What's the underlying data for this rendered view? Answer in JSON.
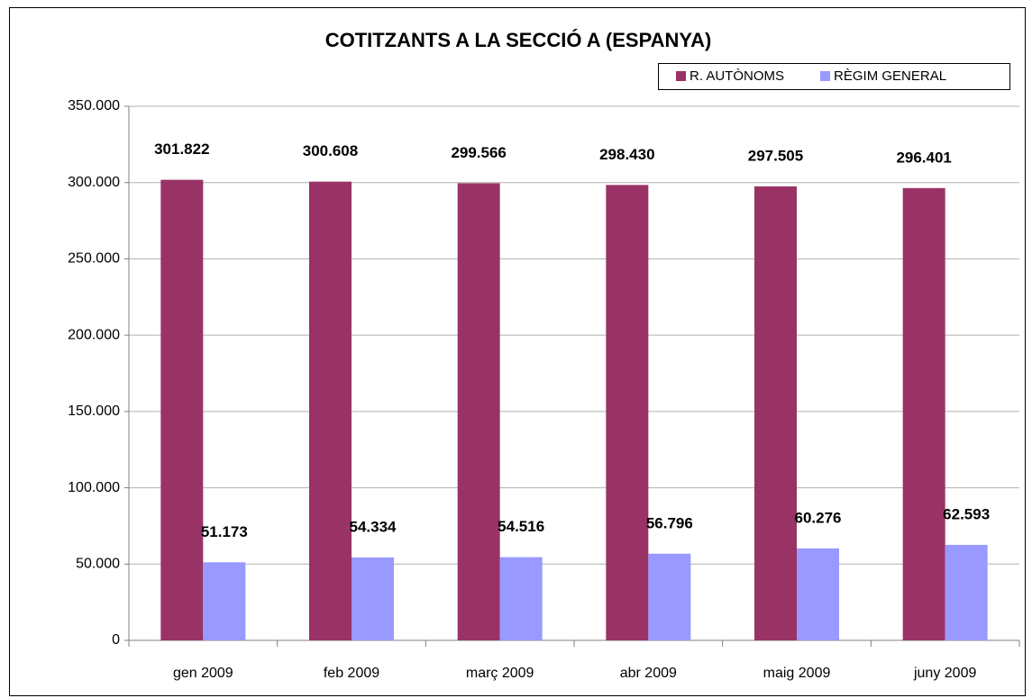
{
  "chart_data": {
    "type": "bar",
    "title": "COTITZANTS A LA SECCIÓ A (ESPANYA)",
    "categories": [
      "gen 2009",
      "feb 2009",
      "març 2009",
      "abr 2009",
      "maig 2009",
      "juny 2009"
    ],
    "series": [
      {
        "name": "R. AUTÒNOMS",
        "color": "#993366",
        "values": [
          301822,
          300608,
          299566,
          298430,
          297505,
          296401
        ],
        "value_labels": [
          "301.822",
          "300.608",
          "299.566",
          "298.430",
          "297.505",
          "296.401"
        ]
      },
      {
        "name": "RÈGIM GENERAL",
        "color": "#9999ff",
        "values": [
          51173,
          54334,
          54516,
          56796,
          60276,
          62593
        ],
        "value_labels": [
          "51.173",
          "54.334",
          "54.516",
          "56.796",
          "60.276",
          "62.593"
        ]
      }
    ],
    "ylim": [
      0,
      350000
    ],
    "yticks": [
      0,
      {
        "value": 50000,
        "label": "50.000"
      },
      {
        "value": 100000,
        "label": "100.000"
      },
      {
        "value": 150000,
        "label": "150.000"
      },
      {
        "value": 200000,
        "label": "200.000"
      },
      {
        "value": 250000,
        "label": "250.000"
      },
      {
        "value": 300000,
        "label": "300.000"
      },
      {
        "value": 350000,
        "label": "350.000"
      }
    ],
    "grid": true,
    "legend": "top-right"
  }
}
